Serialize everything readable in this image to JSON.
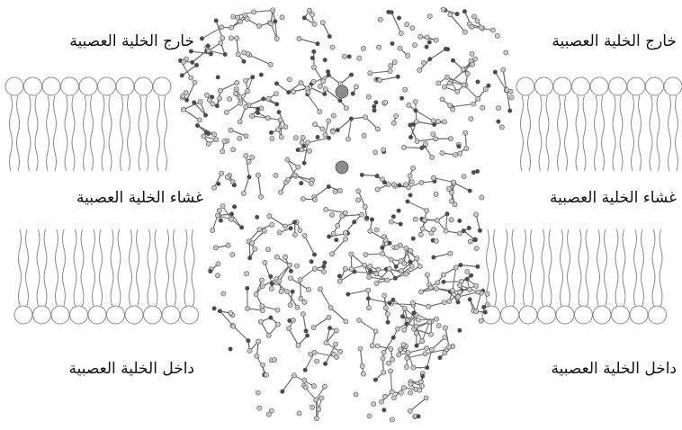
{
  "labels": {
    "outside_left": "خارج الخلية العصبية",
    "outside_right": "خارج الخلية العصبية",
    "membrane_left": "غشاء الخلية العصبية",
    "membrane_right": "غشاء الخلية العصبية",
    "inside_left": "داخل الخلية العصبية",
    "inside_right": "داخل الخلية العصبية"
  },
  "colors": {
    "background": "#ffffff",
    "text": "#111111",
    "lipid_stroke": "#8a8a8a",
    "atom_fill": "#c8c8c8",
    "atom_dark": "#4a4a4a",
    "bond": "#6e6e6e"
  }
}
